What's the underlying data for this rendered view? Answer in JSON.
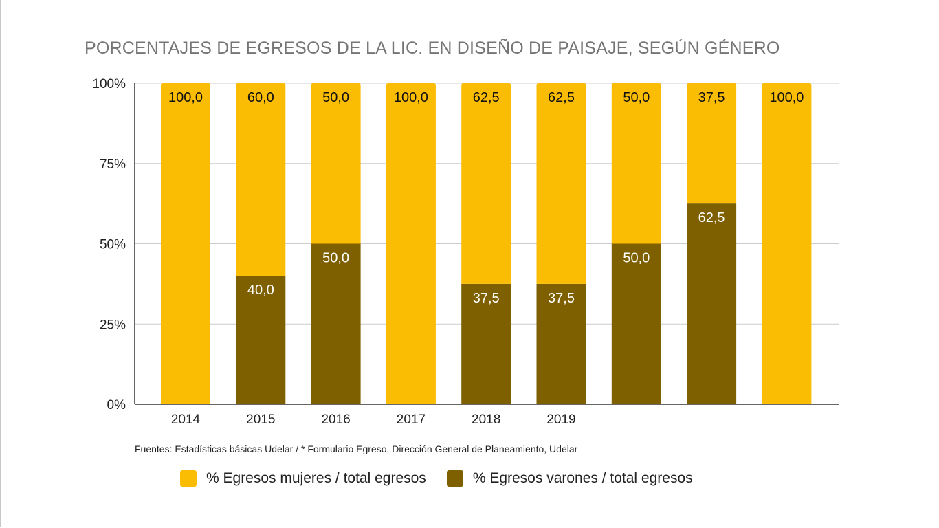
{
  "chart_data": {
    "type": "bar",
    "stacked": true,
    "title": "PORCENTAJES DE EGRESOS DE LA LIC. EN DISEÑO DE PAISAJE, SEGÚN GÉNERO",
    "categories": [
      "2014",
      "2015",
      "2016",
      "2017",
      "2018",
      "2019",
      "",
      "",
      ""
    ],
    "series": [
      {
        "name": "% Egresos mujeres / total egresos",
        "color": "#fbbc04",
        "values": [
          100.0,
          60.0,
          50.0,
          100.0,
          62.5,
          62.5,
          50.0,
          37.5,
          100.0
        ],
        "labels": [
          "100,0",
          "60,0",
          "50,0",
          "100,0",
          "62,5",
          "62,5",
          "50,0",
          "37,5",
          "100,0"
        ]
      },
      {
        "name": "% Egresos varones / total egresos",
        "color": "#7f6000",
        "values": [
          0,
          40.0,
          50.0,
          0,
          37.5,
          37.5,
          50.0,
          62.5,
          0
        ],
        "labels": [
          "",
          "40,0",
          "50,0",
          "",
          "37,5",
          "37,5",
          "50,0",
          "62,5",
          ""
        ]
      }
    ],
    "yticks": [
      {
        "value": 0,
        "label": "0%"
      },
      {
        "value": 25,
        "label": "25%"
      },
      {
        "value": 50,
        "label": "50%"
      },
      {
        "value": 75,
        "label": "75%"
      },
      {
        "value": 100,
        "label": "100%"
      }
    ],
    "ylim": [
      0,
      100
    ],
    "grid": true,
    "legend_position": "bottom",
    "source": "Fuentes: Estadísticas básicas Udelar / * Formulario Egreso, Dirección General de Planeamiento, Udelar"
  }
}
